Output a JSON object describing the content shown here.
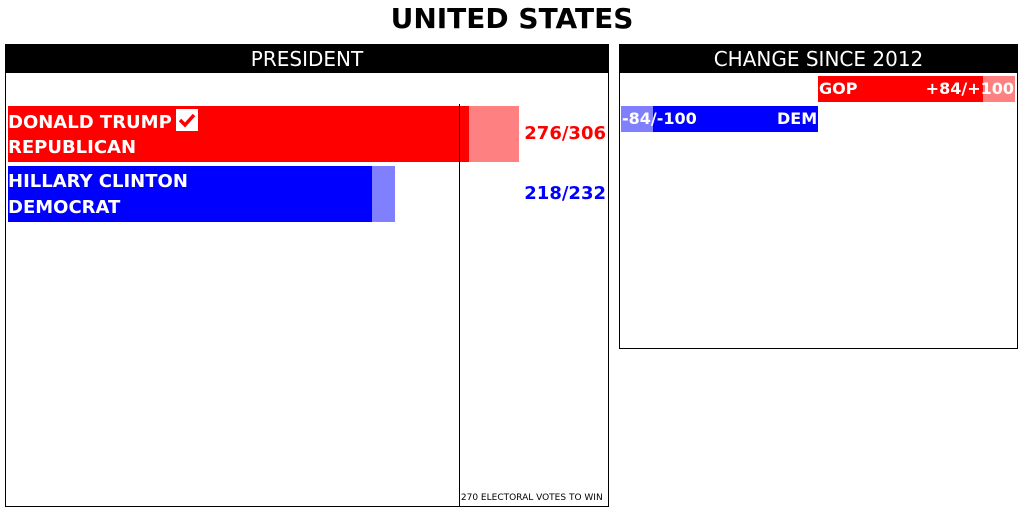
{
  "page_title": "UNITED STATES",
  "president": {
    "header": "PRESIDENT",
    "threshold_note": "270 ELECTORAL VOTES TO WIN",
    "candidates": [
      {
        "name": "DONALD TRUMP",
        "party": "REPUBLICAN",
        "value_label": "276/306",
        "winner": true
      },
      {
        "name": "HILLARY CLINTON",
        "party": "DEMOCRAT",
        "value_label": "218/232",
        "winner": false
      }
    ]
  },
  "change": {
    "header": "CHANGE SINCE 2012",
    "rows": [
      {
        "party": "GOP",
        "value_label": "+84/+100"
      },
      {
        "party": "DEM",
        "value_label": "-84/-100"
      }
    ]
  },
  "colors": {
    "rep": "#ff0000",
    "rep_light": "#ff8080",
    "dem": "#0000ff",
    "dem_light": "#8080ff"
  },
  "chart_data": [
    {
      "type": "bar",
      "title": "PRESIDENT",
      "categories": [
        "DONALD TRUMP",
        "HILLARY CLINTON"
      ],
      "series": [
        {
          "values": [
            276,
            218
          ]
        },
        {
          "values": [
            306,
            232
          ]
        }
      ],
      "threshold": 270,
      "xlim": [
        0,
        306
      ]
    },
    {
      "type": "bar",
      "title": "CHANGE SINCE 2012",
      "categories": [
        "GOP",
        "DEM"
      ],
      "series": [
        {
          "values": [
            84,
            -84
          ]
        },
        {
          "values": [
            100,
            -100
          ]
        }
      ],
      "xlim": [
        -100,
        100
      ]
    }
  ]
}
